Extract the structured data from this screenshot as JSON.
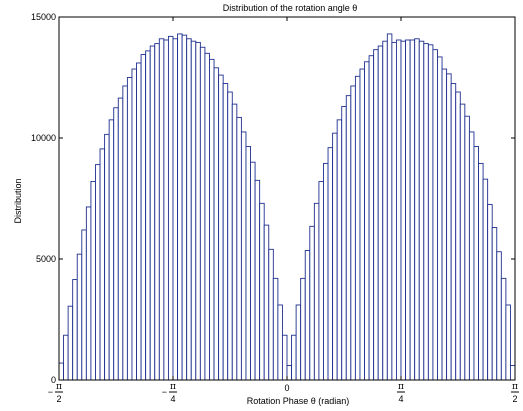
{
  "chart_data": {
    "type": "bar",
    "title": "Distribution of the rotation angle   θ",
    "xlabel": "Rotation Phase   θ (radian)",
    "ylabel": "Distribution",
    "xlim": [
      -1.5708,
      1.5708
    ],
    "ylim": [
      0,
      15000
    ],
    "yticks": [
      {
        "value": 0,
        "label": "0"
      },
      {
        "value": 5000,
        "label": "5000"
      },
      {
        "value": 10000,
        "label": "10000"
      },
      {
        "value": 15000,
        "label": "15000"
      }
    ],
    "xticks": [
      {
        "value": -1.5708,
        "sign": "−",
        "num": "π",
        "den": "2"
      },
      {
        "value": -0.7854,
        "sign": "−",
        "num": "π",
        "den": "4"
      },
      {
        "value": 0,
        "label": "0"
      },
      {
        "value": 0.7854,
        "sign": "",
        "num": "π",
        "den": "4"
      },
      {
        "value": 1.5708,
        "sign": "",
        "num": "π",
        "den": "2"
      }
    ],
    "bar_color": "#1f2f8f",
    "grid": false,
    "bins": 100,
    "values": [
      700,
      1850,
      3050,
      4150,
      5200,
      6200,
      7150,
      8200,
      8900,
      9550,
      10150,
      10750,
      11250,
      11650,
      12150,
      12500,
      12850,
      13100,
      13450,
      13600,
      13800,
      13900,
      14100,
      14050,
      14200,
      14100,
      14300,
      14250,
      14100,
      14000,
      13950,
      13750,
      13500,
      13250,
      12900,
      12600,
      12250,
      11900,
      11400,
      10850,
      10250,
      9650,
      9000,
      8250,
      7300,
      6400,
      5400,
      4200,
      3100,
      1850,
      600,
      1850,
      3100,
      4200,
      5350,
      6350,
      7300,
      8200,
      8950,
      9600,
      10200,
      10750,
      11300,
      11750,
      12150,
      12550,
      12850,
      13150,
      13400,
      13650,
      13800,
      14000,
      14300,
      13950,
      14050,
      14000,
      14050,
      14050,
      14100,
      14000,
      13900,
      13850,
      13650,
      13350,
      12850,
      12650,
      12250,
      11900,
      11400,
      10900,
      10250,
      9650,
      8950,
      8300,
      7250,
      6300,
      5300,
      4200,
      3100,
      600
    ]
  }
}
